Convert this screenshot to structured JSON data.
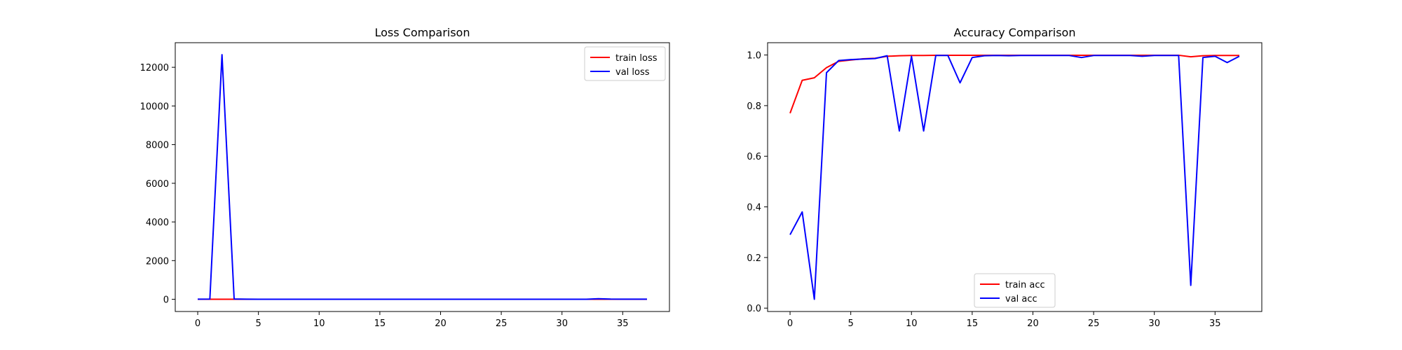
{
  "chart_data": [
    {
      "type": "line",
      "title": "Loss Comparison",
      "xlabel": "",
      "ylabel": "",
      "xlim": [
        -1.85,
        38.85
      ],
      "ylim": [
        -632,
        13272
      ],
      "xticks": [
        0,
        5,
        10,
        15,
        20,
        25,
        30,
        35
      ],
      "yticks": [
        0,
        2000,
        4000,
        6000,
        8000,
        10000,
        12000
      ],
      "legend_position": "top-right",
      "grid": false,
      "x": [
        0,
        1,
        2,
        3,
        4,
        5,
        6,
        7,
        8,
        9,
        10,
        11,
        12,
        13,
        14,
        15,
        16,
        17,
        18,
        19,
        20,
        21,
        22,
        23,
        24,
        25,
        26,
        27,
        28,
        29,
        30,
        31,
        32,
        33,
        34,
        35,
        36,
        37
      ],
      "series": [
        {
          "name": "train loss",
          "color": "#ff0000",
          "values": [
            1.2,
            0.5,
            0.4,
            0.3,
            0.2,
            0.1,
            0.1,
            0.1,
            0.05,
            0.05,
            0.05,
            0.05,
            0.05,
            0.05,
            0.05,
            0.05,
            0.05,
            0.05,
            0.05,
            0.05,
            0.05,
            0.05,
            0.05,
            0.05,
            0.05,
            0.05,
            0.05,
            0.05,
            0.05,
            0.05,
            0.05,
            0.05,
            0.05,
            0.05,
            0.05,
            0.05,
            0.05,
            0.05
          ]
        },
        {
          "name": "val loss",
          "color": "#0000ff",
          "values": [
            8,
            12,
            12650,
            15,
            5,
            3,
            2,
            2,
            2,
            2,
            2,
            2,
            2,
            2,
            2,
            2,
            2,
            2,
            2,
            2,
            2,
            2,
            2,
            2,
            2,
            2,
            2,
            2,
            2,
            2,
            2,
            2,
            2,
            30,
            10,
            5,
            5,
            5
          ]
        }
      ]
    },
    {
      "type": "line",
      "title": "Accuracy Comparison",
      "xlabel": "",
      "ylabel": "",
      "xlim": [
        -1.85,
        38.85
      ],
      "ylim": [
        -0.0133,
        1.0486
      ],
      "xticks": [
        0,
        5,
        10,
        15,
        20,
        25,
        30,
        35
      ],
      "yticks": [
        0.0,
        0.2,
        0.4,
        0.6,
        0.8,
        1.0
      ],
      "ytick_labels": [
        "0.0",
        "0.2",
        "0.4",
        "0.6",
        "0.8",
        "1.0"
      ],
      "legend_position": "lower-center",
      "grid": false,
      "x": [
        0,
        1,
        2,
        3,
        4,
        5,
        6,
        7,
        8,
        9,
        10,
        11,
        12,
        13,
        14,
        15,
        16,
        17,
        18,
        19,
        20,
        21,
        22,
        23,
        24,
        25,
        26,
        27,
        28,
        29,
        30,
        31,
        32,
        33,
        34,
        35,
        36,
        37
      ],
      "series": [
        {
          "name": "train acc",
          "color": "#ff0000",
          "values": [
            0.77,
            0.9,
            0.91,
            0.95,
            0.975,
            0.98,
            0.985,
            0.987,
            0.995,
            0.997,
            0.998,
            0.998,
            0.999,
            0.999,
            0.999,
            0.999,
            0.999,
            0.999,
            0.999,
            0.999,
            0.999,
            0.999,
            0.999,
            0.999,
            0.999,
            0.999,
            0.999,
            0.999,
            0.999,
            0.999,
            0.999,
            0.999,
            0.999,
            0.993,
            0.997,
            0.998,
            0.998,
            0.998
          ]
        },
        {
          "name": "val acc",
          "color": "#0000ff",
          "values": [
            0.29,
            0.38,
            0.035,
            0.93,
            0.978,
            0.982,
            0.984,
            0.986,
            0.997,
            0.7,
            0.995,
            0.7,
            0.998,
            0.998,
            0.89,
            0.99,
            0.997,
            0.998,
            0.997,
            0.998,
            0.998,
            0.998,
            0.998,
            0.998,
            0.99,
            0.998,
            0.998,
            0.998,
            0.998,
            0.995,
            0.998,
            0.998,
            0.998,
            0.09,
            0.99,
            0.995,
            0.97,
            0.995
          ]
        }
      ]
    }
  ]
}
